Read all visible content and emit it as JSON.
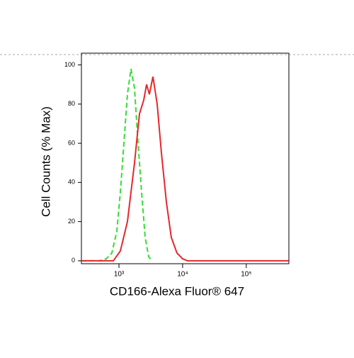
{
  "chart_data": {
    "type": "line",
    "x_label": "CD166-Alexa Fluor® 647",
    "y_label": "Cell Counts (% Max)",
    "xscale": "log",
    "xlim": [
      257,
      467000
    ],
    "ylim": [
      -1.5,
      106
    ],
    "xticks": [
      {
        "value": 1000,
        "label": "10³"
      },
      {
        "value": 10000,
        "label": "10⁴"
      },
      {
        "value": 100000,
        "label": "10⁵"
      }
    ],
    "yticks": [
      0,
      20,
      40,
      60,
      80,
      100
    ],
    "series": [
      {
        "color": "#33dd33",
        "dash": true,
        "x": [
          257,
          489,
          631,
          774,
          926,
          1052,
          1196,
          1359,
          1545,
          1756,
          1995,
          2268,
          2577,
          2929,
          3329
        ],
        "values": [
          0,
          0,
          1,
          4,
          15,
          35,
          60,
          85,
          98,
          88,
          60,
          35,
          12,
          2,
          0
        ]
      },
      {
        "color": "#e8262b",
        "dash": false,
        "x": [
          257,
          815,
          1052,
          1359,
          1756,
          2101,
          2448,
          2713,
          3004,
          3415,
          3981,
          4642,
          5550,
          6637,
          8149,
          10000,
          11966,
          464000
        ],
        "values": [
          0,
          0,
          5,
          20,
          50,
          75,
          82,
          90,
          85,
          94,
          80,
          55,
          30,
          12,
          4,
          1,
          0,
          0
        ]
      }
    ]
  }
}
